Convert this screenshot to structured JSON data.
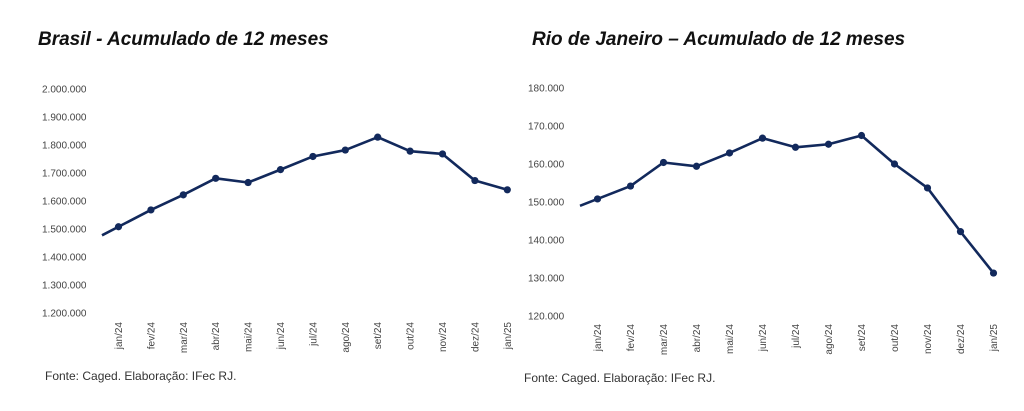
{
  "chart_data": [
    {
      "type": "line",
      "title": "Brasil - Acumulado de 12 meses",
      "source": "Fonte: Caged. Elaboração: IFec RJ.",
      "categories": [
        "jan/24",
        "fev/24",
        "mar/24",
        "abr/24",
        "mai/24",
        "jun/24",
        "jul/24",
        "ago/24",
        "set/24",
        "out/24",
        "nov/24",
        "dez/24",
        "jan/25"
      ],
      "series": [
        {
          "values": [
            1508000,
            1568000,
            1622000,
            1681000,
            1666000,
            1712000,
            1759000,
            1782000,
            1828000,
            1778000,
            1768000,
            1673000,
            1640000
          ]
        }
      ],
      "y_ticks": [
        "1.200.000",
        "1.300.000",
        "1.400.000",
        "1.500.000",
        "1.600.000",
        "1.700.000",
        "1.800.000",
        "1.900.000",
        "2.000.000"
      ],
      "ylim": [
        1200000,
        2000000
      ],
      "grid": false,
      "legend": "none",
      "colors": {
        "line": "#12295c"
      }
    },
    {
      "type": "line",
      "title": "Rio de Janeiro – Acumulado de 12 meses",
      "source": "Fonte: Caged. Elaboração: IFec RJ.",
      "categories": [
        "jan/24",
        "fev/24",
        "mar/24",
        "abr/24",
        "mai/24",
        "jun/24",
        "jul/24",
        "ago/24",
        "set/24",
        "out/24",
        "nov/24",
        "dez/24",
        "jan/25"
      ],
      "series": [
        {
          "values": [
            150800,
            154200,
            160400,
            159400,
            162900,
            166800,
            164400,
            165200,
            167500,
            160000,
            153700,
            142200,
            131300
          ]
        }
      ],
      "y_ticks": [
        "120.000",
        "130.000",
        "140.000",
        "150.000",
        "160.000",
        "170.000",
        "180.000"
      ],
      "ylim": [
        120000,
        180000
      ],
      "grid": false,
      "legend": "none",
      "colors": {
        "line": "#12295c"
      }
    }
  ]
}
